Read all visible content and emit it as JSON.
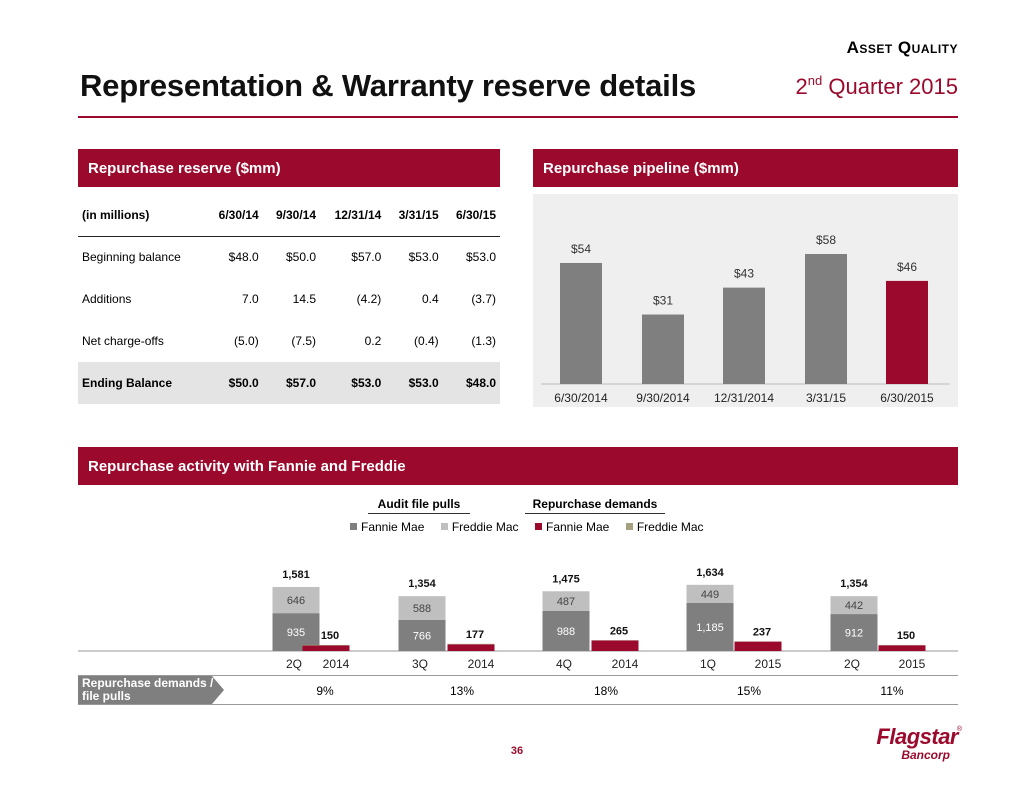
{
  "header": {
    "section_tag": "Asset Quality",
    "title": "Representation & Warranty reserve details",
    "quarter_prefix": "2",
    "quarter_sup": "nd",
    "quarter_suffix": " Quarter 2015"
  },
  "reserve": {
    "heading": "Repurchase reserve ($mm)",
    "columns": [
      "(in millions)",
      "6/30/14",
      "9/30/14",
      "12/31/14",
      "3/31/15",
      "6/30/15"
    ],
    "rows": [
      {
        "label": "Beginning balance",
        "values": [
          "$48.0",
          "$50.0",
          "$57.0",
          "$53.0",
          "$53.0"
        ]
      },
      {
        "label": "Additions",
        "values": [
          "7.0",
          "14.5",
          "(4.2)",
          "0.4",
          "(3.7)"
        ]
      },
      {
        "label": "Net charge-offs",
        "values": [
          "(5.0)",
          "(7.5)",
          "0.2",
          "(0.4)",
          "(1.3)"
        ]
      },
      {
        "label": "Ending Balance",
        "values": [
          "$50.0",
          "$57.0",
          "$53.0",
          "$53.0",
          "$48.0"
        ]
      }
    ]
  },
  "pipeline": {
    "heading": "Repurchase pipeline ($mm)"
  },
  "activity": {
    "heading": "Repurchase activity with Fannie and Freddie",
    "group_audit": "Audit file pulls",
    "group_demands": "Repurchase demands",
    "ratio_label_line1": "Repurchase demands /",
    "ratio_label_line2": "file pulls",
    "ratios": [
      "9%",
      "13%",
      "18%",
      "15%",
      "11%"
    ]
  },
  "colors": {
    "accent": "#9b0a2c",
    "bar_gray": "#7f7f7f",
    "light_gray": "#bfbfbf",
    "olive": "#a5a180"
  },
  "chart_data": [
    {
      "type": "bar",
      "categories": [
        "6/30/2014",
        "9/30/2014",
        "12/31/2014",
        "3/31/15",
        "6/30/2015"
      ],
      "values": [
        54,
        31,
        43,
        58,
        46
      ],
      "labels": [
        "$54",
        "$31",
        "$43",
        "$58",
        "$46"
      ]
    },
    {
      "type": "bar",
      "stacked": true,
      "categories": [
        [
          "2Q",
          "2014"
        ],
        [
          "3Q",
          "2014"
        ],
        [
          "4Q",
          "2014"
        ],
        [
          "1Q",
          "2015"
        ],
        [
          "2Q",
          "2015"
        ]
      ],
      "series": [
        {
          "name": "Fannie Mae",
          "group": "Audit file pulls",
          "values": [
            935,
            766,
            988,
            1185,
            912
          ],
          "labels": [
            "935",
            "766",
            "988",
            "1,185",
            "912"
          ]
        },
        {
          "name": "Freddie Mac",
          "group": "Audit file pulls",
          "values": [
            646,
            588,
            487,
            449,
            442
          ],
          "labels": [
            "646",
            "588",
            "487",
            "449",
            "442"
          ]
        },
        {
          "name": "Fannie Mae",
          "group": "Repurchase demands",
          "values": [
            135,
            165,
            260,
            232,
            140
          ]
        },
        {
          "name": "Freddie Mac",
          "group": "Repurchase demands",
          "values": [
            15,
            12,
            5,
            5,
            10
          ]
        }
      ],
      "audit_totals": [
        "1,581",
        "1,354",
        "1,475",
        "1,634",
        "1,354"
      ],
      "demand_totals": [
        "150",
        "177",
        "265",
        "237",
        "150"
      ]
    }
  ],
  "footer": {
    "page_number": "36",
    "logo_name": "Flagstar",
    "logo_sub": "Bancorp"
  }
}
